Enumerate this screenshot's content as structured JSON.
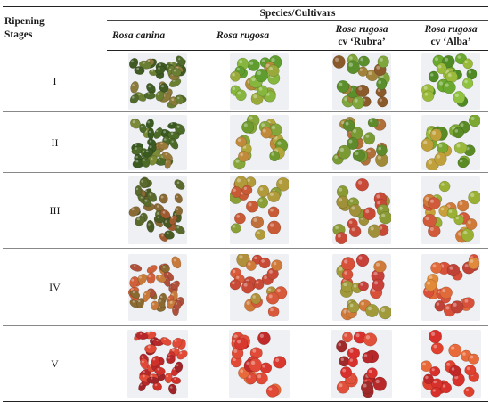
{
  "table": {
    "header": {
      "stage_label": "Ripening\nStages",
      "group_label": "Species/Cultivars",
      "columns": [
        {
          "line1": "Rosa canina",
          "line2": ""
        },
        {
          "line1": "Rosa rugosa",
          "line2": ""
        },
        {
          "line1": "Rosa rugosa",
          "line2": "cv ‘Rubra’"
        },
        {
          "line1": "Rosa rugosa",
          "line2": "cv ‘Alba’"
        }
      ]
    },
    "rows": [
      {
        "stage": "I",
        "photos": [
          {
            "name": "canina-hips-stage-1",
            "colors": [
              "#4f6a2a",
              "#6b7f33",
              "#8a7a3a",
              "#3f5a22"
            ]
          },
          {
            "name": "rugosa-hips-stage-1",
            "colors": [
              "#5f9e2e",
              "#86b63d",
              "#9aaa3a",
              "#b08a3a"
            ]
          },
          {
            "name": "rubra-hips-stage-1",
            "colors": [
              "#5a8f2c",
              "#7fa63a",
              "#a0823a",
              "#8a5a2a"
            ]
          },
          {
            "name": "alba-hips-stage-1",
            "colors": [
              "#6aa82e",
              "#8fc23f",
              "#4f8a24",
              "#9aba3a"
            ]
          }
        ]
      },
      {
        "stage": "II",
        "photos": [
          {
            "name": "canina-hips-stage-2",
            "colors": [
              "#4c6a28",
              "#7a8a36",
              "#9a7a3a",
              "#3a5a22"
            ]
          },
          {
            "name": "rugosa-hips-stage-2",
            "colors": [
              "#86a63a",
              "#b0a63a",
              "#c08a3a",
              "#6f9a2e"
            ]
          },
          {
            "name": "rubra-hips-stage-2",
            "colors": [
              "#7a9a34",
              "#a08a3a",
              "#b0703a",
              "#5f8a2c"
            ]
          },
          {
            "name": "alba-hips-stage-2",
            "colors": [
              "#7aa830",
              "#9ab83a",
              "#c0a03a",
              "#5a8a24"
            ]
          }
        ]
      },
      {
        "stage": "III",
        "photos": [
          {
            "name": "canina-hips-stage-3",
            "colors": [
              "#5a6a2c",
              "#8a6a34",
              "#a05a30",
              "#4a5a24"
            ]
          },
          {
            "name": "rugosa-hips-stage-3",
            "colors": [
              "#b09a3a",
              "#c0703a",
              "#8aa036",
              "#c85a36"
            ]
          },
          {
            "name": "rubra-hips-stage-3",
            "colors": [
              "#c06a3a",
              "#a0903a",
              "#c84a36",
              "#8a9a34"
            ]
          },
          {
            "name": "alba-hips-stage-3",
            "colors": [
              "#c8a03a",
              "#d07a3a",
              "#9ab034",
              "#d05a3a"
            ]
          }
        ]
      },
      {
        "stage": "IV",
        "photos": [
          {
            "name": "canina-hips-stage-4",
            "colors": [
              "#d0603a",
              "#c87a3a",
              "#b0503a",
              "#8a6a30"
            ]
          },
          {
            "name": "rugosa-hips-stage-4",
            "colors": [
              "#d85a3a",
              "#d07a3a",
              "#c84a36",
              "#b0903a"
            ]
          },
          {
            "name": "rubra-hips-stage-4",
            "colors": [
              "#d8503a",
              "#c8403a",
              "#d07a3a",
              "#a09a3a"
            ]
          },
          {
            "name": "alba-hips-stage-4",
            "colors": [
              "#e06a3a",
              "#d8503a",
              "#e08a3a",
              "#c04236"
            ]
          }
        ]
      },
      {
        "stage": "V",
        "photos": [
          {
            "name": "canina-hips-stage-5",
            "colors": [
              "#d0302a",
              "#b8282a",
              "#e04a36",
              "#a02428"
            ]
          },
          {
            "name": "rugosa-hips-stage-5",
            "colors": [
              "#d8382e",
              "#e04a36",
              "#c02a2a",
              "#e86a3a"
            ]
          },
          {
            "name": "rubra-hips-stage-5",
            "colors": [
              "#d8302c",
              "#b8282a",
              "#e0503a",
              "#a02a2a"
            ]
          },
          {
            "name": "alba-hips-stage-5",
            "colors": [
              "#e0402e",
              "#d8302a",
              "#e86a3a",
              "#c02828"
            ]
          }
        ]
      }
    ]
  }
}
